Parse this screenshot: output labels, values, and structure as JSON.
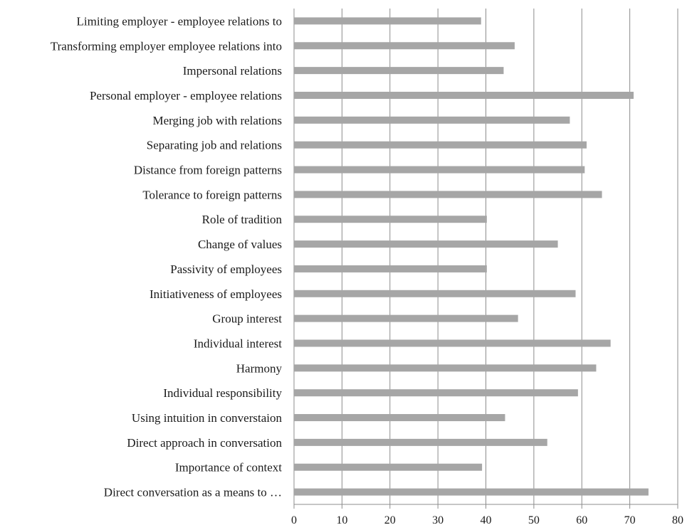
{
  "chart_data": {
    "type": "bar",
    "orientation": "horizontal",
    "categories": [
      "Limiting employer - employee relations to",
      "Transforming employer employee relations into",
      "Impersonal relations",
      "Personal employer - employee relations",
      "Merging job with relations",
      "Separating job and relations",
      "Distance from foreign patterns",
      "Tolerance to foreign patterns",
      "Role of tradition",
      "Change of values",
      "Passivity of employees",
      "Initiativeness of employees",
      "Group interest",
      "Individual interest",
      "Harmony",
      "Individual responsibility",
      "Using intuition in converstaion",
      "Direct approach in conversation",
      "Importance of context",
      "Direct conversation as a means to …"
    ],
    "values": [
      39,
      46,
      43.7,
      70.8,
      57.5,
      61,
      60.6,
      64.2,
      40.2,
      55,
      40.2,
      58.7,
      46.7,
      66,
      63,
      59.2,
      44,
      52.8,
      39.2,
      73.9
    ],
    "xlim": [
      0,
      80
    ],
    "xticks": [
      "0",
      "10",
      "20",
      "30",
      "40",
      "50",
      "60",
      "70",
      "80"
    ],
    "grid": true,
    "title": "",
    "xlabel": "",
    "ylabel": "",
    "colors": {
      "bar": "#a6a6a6",
      "grid": "#8c8c8c"
    }
  }
}
